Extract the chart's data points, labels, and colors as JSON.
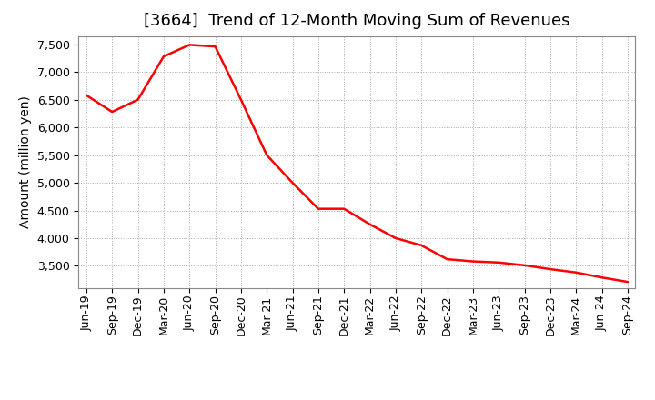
{
  "title": "[3664]  Trend of 12-Month Moving Sum of Revenues",
  "ylabel": "Amount (million yen)",
  "line_color": "#FF0000",
  "background_color": "#FFFFFF",
  "grid_color": "#AAAAAA",
  "xlabels": [
    "Jun-19",
    "Sep-19",
    "Dec-19",
    "Mar-20",
    "Jun-20",
    "Sep-20",
    "Dec-20",
    "Mar-21",
    "Jun-21",
    "Sep-21",
    "Dec-21",
    "Mar-22",
    "Jun-22",
    "Sep-22",
    "Dec-22",
    "Mar-23",
    "Jun-23",
    "Sep-23",
    "Dec-23",
    "Mar-24",
    "Jun-24",
    "Sep-24"
  ],
  "values": [
    6580,
    6280,
    6500,
    7280,
    7490,
    7460,
    6500,
    5500,
    5000,
    4530,
    4530,
    4250,
    4000,
    3870,
    3620,
    3580,
    3560,
    3510,
    3440,
    3380,
    3290,
    3210
  ],
  "ylim": [
    3100,
    7650
  ],
  "yticks": [
    3500,
    4000,
    4500,
    5000,
    5500,
    6000,
    6500,
    7000,
    7500
  ],
  "title_fontsize": 13,
  "ylabel_fontsize": 10,
  "tick_fontsize": 9
}
